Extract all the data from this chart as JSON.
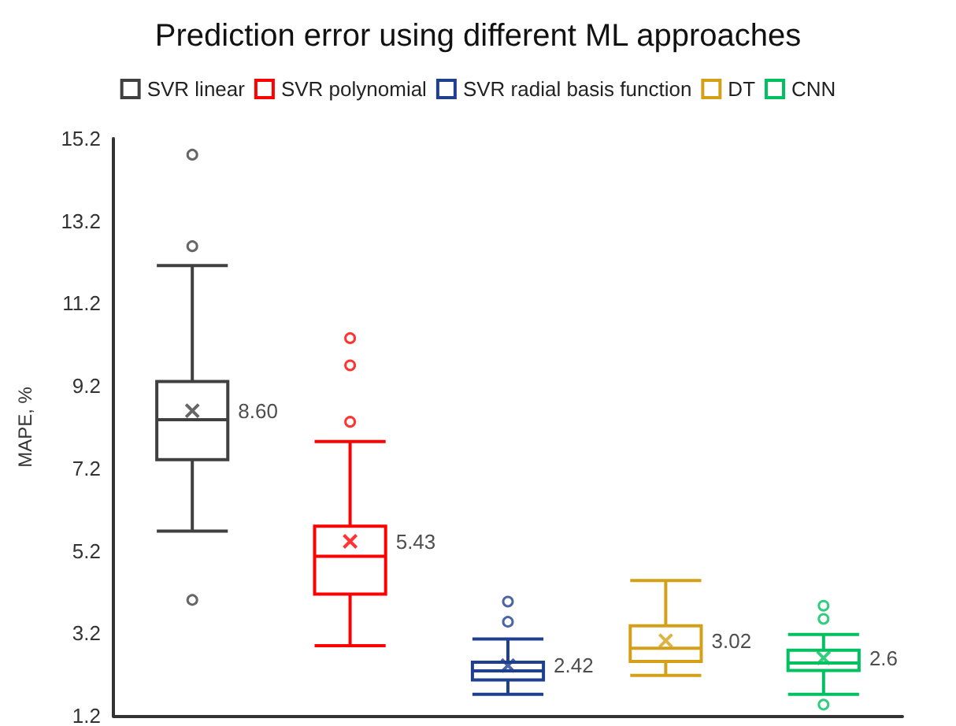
{
  "chart_data": {
    "type": "box",
    "title": "Prediction error using different ML approaches",
    "ylabel": "MAPE, %",
    "categories": [
      null,
      null,
      null,
      null,
      null
    ],
    "ylim": [
      1.2,
      15.2
    ],
    "yticks": [
      1.2,
      3.2,
      5.2,
      7.2,
      9.2,
      11.2,
      13.2,
      15.2
    ],
    "grid": false,
    "legend": "top",
    "tick_labels": "y",
    "marker": "circle",
    "series": [
      {
        "name": "SVR linear",
        "color": "#404040",
        "boxes": [
          {
            "low": 5.68,
            "q1": 7.41,
            "median": 8.38,
            "q3": 9.31,
            "high": 12.12,
            "mean": 8.6,
            "outliers": [
              14.81,
              12.59,
              4.01
            ]
          },
          null,
          null,
          null,
          null
        ],
        "value_labels": [
          "8.60",
          null,
          null,
          null,
          null
        ]
      },
      {
        "name": "SVR polynomial",
        "color": "#ff0000",
        "boxes": [
          null,
          {
            "low": 2.9,
            "q1": 4.15,
            "median": 5.07,
            "q3": 5.8,
            "high": 7.85,
            "mean": 5.43,
            "outliers": [
              10.36,
              9.7,
              8.33
            ]
          },
          null,
          null,
          null
        ],
        "value_labels": [
          null,
          "5.43",
          null,
          null,
          null
        ]
      },
      {
        "name": "SVR radial basis function",
        "color": "#1f3f8f",
        "boxes": [
          null,
          null,
          {
            "low": 1.72,
            "q1": 2.07,
            "median": 2.29,
            "q3": 2.5,
            "high": 3.06,
            "mean": 2.42,
            "outliers": [
              3.97,
              3.48
            ]
          },
          null,
          null
        ],
        "value_labels": [
          null,
          null,
          "2.42",
          null,
          null
        ]
      },
      {
        "name": "DT",
        "color": "#d4a017",
        "boxes": [
          null,
          null,
          null,
          {
            "low": 2.18,
            "q1": 2.52,
            "median": 2.84,
            "q3": 3.38,
            "high": 4.48,
            "mean": 3.02
          },
          null
        ],
        "value_labels": [
          null,
          null,
          null,
          "3.02",
          null
        ]
      },
      {
        "name": "CNN",
        "color": "#00c060",
        "boxes": [
          null,
          null,
          null,
          null,
          {
            "low": 1.72,
            "q1": 2.3,
            "median": 2.48,
            "q3": 2.79,
            "high": 3.17,
            "mean": 2.6,
            "outliers": [
              3.87,
              3.55,
              1.47
            ]
          }
        ],
        "value_labels": [
          null,
          null,
          null,
          null,
          "2.6"
        ]
      }
    ]
  }
}
